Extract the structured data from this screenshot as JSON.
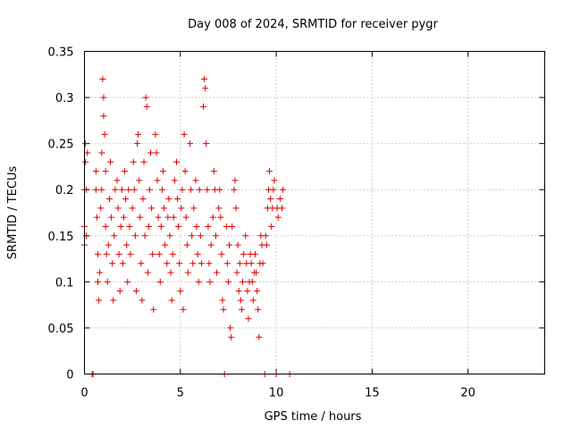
{
  "chart_data": {
    "type": "scatter",
    "title": "Day 008 of 2024, SRMTID for receiver pygr",
    "xlabel": "GPS time / hours",
    "ylabel": "SRMTID / TECUs",
    "xlim": [
      0,
      24
    ],
    "ylim": [
      0,
      0.35
    ],
    "xticks": [
      0,
      5,
      10,
      15,
      20
    ],
    "xtick_labels": [
      "0",
      "5",
      "10",
      "15",
      "20"
    ],
    "yticks": [
      0,
      0.05,
      0.1,
      0.15,
      0.2,
      0.25,
      0.3,
      0.35
    ],
    "ytick_labels": [
      "0",
      "0.05",
      "0.1",
      "0.15",
      "0.2",
      "0.25",
      "0.3",
      "0.35"
    ],
    "grid": true,
    "marker": "+",
    "color": "#e00000",
    "series": [
      {
        "name": "SRMTID",
        "points": [
          [
            0.0,
            0.14
          ],
          [
            0.0,
            0.16
          ],
          [
            0.0,
            0.2
          ],
          [
            0.05,
            0.25
          ],
          [
            0.05,
            0.23
          ],
          [
            0.1,
            0.2
          ],
          [
            0.1,
            0.15
          ],
          [
            0.15,
            0.24
          ],
          [
            0.4,
            0.0
          ],
          [
            0.45,
            0.0
          ],
          [
            0.6,
            0.22
          ],
          [
            0.6,
            0.2
          ],
          [
            0.65,
            0.17
          ],
          [
            0.7,
            0.13
          ],
          [
            0.7,
            0.1
          ],
          [
            0.75,
            0.08
          ],
          [
            0.8,
            0.11
          ],
          [
            0.85,
            0.18
          ],
          [
            0.9,
            0.24
          ],
          [
            0.9,
            0.2
          ],
          [
            0.95,
            0.32
          ],
          [
            1.0,
            0.3
          ],
          [
            1.0,
            0.28
          ],
          [
            1.05,
            0.26
          ],
          [
            1.1,
            0.22
          ],
          [
            1.1,
            0.16
          ],
          [
            1.15,
            0.13
          ],
          [
            1.2,
            0.1
          ],
          [
            1.25,
            0.14
          ],
          [
            1.3,
            0.19
          ],
          [
            1.35,
            0.23
          ],
          [
            1.4,
            0.17
          ],
          [
            1.45,
            0.12
          ],
          [
            1.5,
            0.08
          ],
          [
            1.55,
            0.15
          ],
          [
            1.6,
            0.2
          ],
          [
            1.7,
            0.21
          ],
          [
            1.75,
            0.18
          ],
          [
            1.8,
            0.13
          ],
          [
            1.85,
            0.09
          ],
          [
            1.9,
            0.16
          ],
          [
            1.95,
            0.2
          ],
          [
            2.0,
            0.12
          ],
          [
            2.05,
            0.17
          ],
          [
            2.1,
            0.22
          ],
          [
            2.15,
            0.19
          ],
          [
            2.2,
            0.14
          ],
          [
            2.25,
            0.1
          ],
          [
            2.3,
            0.2
          ],
          [
            2.35,
            0.16
          ],
          [
            2.4,
            0.13
          ],
          [
            2.5,
            0.18
          ],
          [
            2.55,
            0.23
          ],
          [
            2.6,
            0.2
          ],
          [
            2.65,
            0.15
          ],
          [
            2.7,
            0.09
          ],
          [
            2.75,
            0.25
          ],
          [
            2.8,
            0.26
          ],
          [
            2.85,
            0.21
          ],
          [
            2.9,
            0.17
          ],
          [
            2.95,
            0.12
          ],
          [
            3.0,
            0.08
          ],
          [
            3.05,
            0.19
          ],
          [
            3.1,
            0.23
          ],
          [
            3.15,
            0.15
          ],
          [
            3.2,
            0.3
          ],
          [
            3.25,
            0.29
          ],
          [
            3.3,
            0.11
          ],
          [
            3.35,
            0.16
          ],
          [
            3.4,
            0.2
          ],
          [
            3.45,
            0.24
          ],
          [
            3.5,
            0.18
          ],
          [
            3.55,
            0.13
          ],
          [
            3.6,
            0.07
          ],
          [
            3.7,
            0.26
          ],
          [
            3.75,
            0.24
          ],
          [
            3.8,
            0.21
          ],
          [
            3.85,
            0.17
          ],
          [
            3.9,
            0.13
          ],
          [
            3.95,
            0.1
          ],
          [
            4.0,
            0.16
          ],
          [
            4.05,
            0.2
          ],
          [
            4.1,
            0.22
          ],
          [
            4.15,
            0.18
          ],
          [
            4.2,
            0.14
          ],
          [
            4.3,
            0.12
          ],
          [
            4.35,
            0.17
          ],
          [
            4.4,
            0.19
          ],
          [
            4.45,
            0.15
          ],
          [
            4.5,
            0.11
          ],
          [
            4.55,
            0.08
          ],
          [
            4.6,
            0.13
          ],
          [
            4.65,
            0.17
          ],
          [
            4.7,
            0.21
          ],
          [
            4.8,
            0.23
          ],
          [
            4.85,
            0.19
          ],
          [
            4.9,
            0.16
          ],
          [
            4.95,
            0.12
          ],
          [
            5.0,
            0.09
          ],
          [
            5.05,
            0.18
          ],
          [
            5.1,
            0.2
          ],
          [
            5.15,
            0.07
          ],
          [
            5.2,
            0.26
          ],
          [
            5.25,
            0.22
          ],
          [
            5.3,
            0.17
          ],
          [
            5.35,
            0.14
          ],
          [
            5.4,
            0.11
          ],
          [
            5.5,
            0.25
          ],
          [
            5.55,
            0.2
          ],
          [
            5.6,
            0.15
          ],
          [
            5.65,
            0.12
          ],
          [
            5.7,
            0.18
          ],
          [
            5.8,
            0.21
          ],
          [
            5.85,
            0.16
          ],
          [
            5.9,
            0.13
          ],
          [
            5.95,
            0.1
          ],
          [
            6.0,
            0.2
          ],
          [
            6.05,
            0.15
          ],
          [
            6.1,
            0.12
          ],
          [
            6.2,
            0.29
          ],
          [
            6.25,
            0.32
          ],
          [
            6.3,
            0.31
          ],
          [
            6.35,
            0.25
          ],
          [
            6.4,
            0.2
          ],
          [
            6.45,
            0.16
          ],
          [
            6.5,
            0.12
          ],
          [
            6.55,
            0.1
          ],
          [
            6.6,
            0.14
          ],
          [
            6.7,
            0.17
          ],
          [
            6.75,
            0.22
          ],
          [
            6.8,
            0.2
          ],
          [
            6.85,
            0.15
          ],
          [
            6.9,
            0.11
          ],
          [
            7.0,
            0.18
          ],
          [
            7.05,
            0.2
          ],
          [
            7.1,
            0.17
          ],
          [
            7.15,
            0.13
          ],
          [
            7.2,
            0.08
          ],
          [
            7.25,
            0.07
          ],
          [
            7.3,
            0.0
          ],
          [
            7.4,
            0.16
          ],
          [
            7.45,
            0.12
          ],
          [
            7.5,
            0.1
          ],
          [
            7.55,
            0.14
          ],
          [
            7.6,
            0.05
          ],
          [
            7.65,
            0.04
          ],
          [
            7.7,
            0.16
          ],
          [
            7.8,
            0.2
          ],
          [
            7.85,
            0.21
          ],
          [
            7.9,
            0.18
          ],
          [
            7.95,
            0.11
          ],
          [
            8.0,
            0.14
          ],
          [
            8.05,
            0.09
          ],
          [
            8.1,
            0.12
          ],
          [
            8.15,
            0.08
          ],
          [
            8.2,
            0.07
          ],
          [
            8.25,
            0.1
          ],
          [
            8.3,
            0.13
          ],
          [
            8.4,
            0.15
          ],
          [
            8.45,
            0.12
          ],
          [
            8.5,
            0.09
          ],
          [
            8.55,
            0.06
          ],
          [
            8.6,
            0.1
          ],
          [
            8.65,
            0.13
          ],
          [
            8.7,
            0.12
          ],
          [
            8.75,
            0.1
          ],
          [
            8.8,
            0.08
          ],
          [
            8.85,
            0.11
          ],
          [
            8.9,
            0.13
          ],
          [
            8.95,
            0.11
          ],
          [
            9.0,
            0.09
          ],
          [
            9.05,
            0.07
          ],
          [
            9.1,
            0.04
          ],
          [
            9.15,
            0.12
          ],
          [
            9.2,
            0.15
          ],
          [
            9.25,
            0.14
          ],
          [
            9.3,
            0.12
          ],
          [
            9.4,
            0.0
          ],
          [
            9.45,
            0.15
          ],
          [
            9.5,
            0.14
          ],
          [
            9.55,
            0.18
          ],
          [
            9.6,
            0.2
          ],
          [
            9.65,
            0.22
          ],
          [
            9.7,
            0.19
          ],
          [
            9.75,
            0.16
          ],
          [
            9.8,
            0.18
          ],
          [
            9.85,
            0.2
          ],
          [
            9.9,
            0.21
          ],
          [
            10.0,
            0.0
          ],
          [
            10.05,
            0.18
          ],
          [
            10.1,
            0.17
          ],
          [
            10.2,
            0.19
          ],
          [
            10.3,
            0.18
          ],
          [
            10.35,
            0.2
          ],
          [
            10.7,
            0.0
          ]
        ]
      }
    ]
  }
}
